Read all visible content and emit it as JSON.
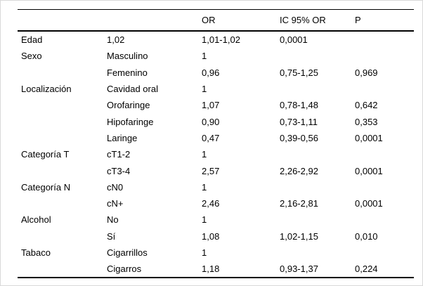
{
  "table": {
    "columns": [
      "",
      "",
      "OR",
      "IC 95% OR",
      "P"
    ],
    "rows": [
      [
        "Edad",
        "1,02",
        "1,01-1,02",
        "0,0001",
        ""
      ],
      [
        "Sexo",
        "Masculino",
        "1",
        "",
        ""
      ],
      [
        "",
        "Femenino",
        "0,96",
        "0,75-1,25",
        "0,969"
      ],
      [
        "Localización",
        "Cavidad oral",
        "1",
        "",
        ""
      ],
      [
        "",
        "Orofaringe",
        "1,07",
        "0,78-1,48",
        "0,642"
      ],
      [
        "",
        "Hipofaringe",
        "0,90",
        "0,73-1,11",
        "0,353"
      ],
      [
        "",
        "Laringe",
        "0,47",
        "0,39-0,56",
        "0,0001"
      ],
      [
        "Categoría T",
        "cT1-2",
        "1",
        "",
        ""
      ],
      [
        "",
        "cT3-4",
        "2,57",
        "2,26-2,92",
        "0,0001"
      ],
      [
        "Categoría N",
        "cN0",
        "1",
        "",
        ""
      ],
      [
        "",
        "cN+",
        "2,46",
        "2,16-2,81",
        "0,0001"
      ],
      [
        "Alcohol",
        "No",
        "1",
        "",
        ""
      ],
      [
        "",
        "Sí",
        "1,08",
        "1,02-1,15",
        "0,010"
      ],
      [
        "Tabaco",
        "Cigarrillos",
        "1",
        "",
        ""
      ],
      [
        "",
        "Cigarros",
        "1,18",
        "0,93-1,37",
        "0,224"
      ]
    ]
  },
  "colors": {
    "text": "#000000",
    "background": "#ffffff",
    "rule": "#000000",
    "canvas_border": "#d9d9d9"
  }
}
